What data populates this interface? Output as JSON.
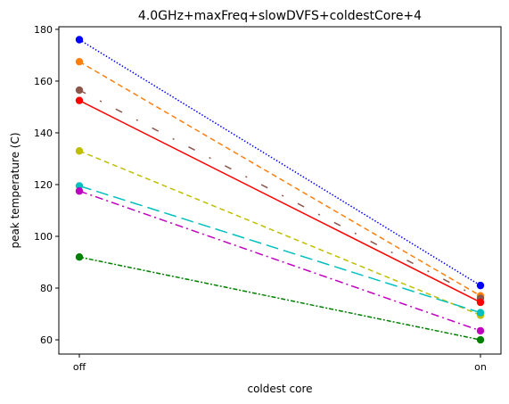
{
  "chart_data": {
    "type": "line",
    "title": "4.0GHz+maxFreq+slowDVFS+coldestCore+4",
    "xlabel": "coldest core",
    "ylabel": "peak temperature (C)",
    "categories": [
      "off",
      "on"
    ],
    "ylim": [
      54.5,
      181
    ],
    "yticks": [
      60,
      80,
      100,
      120,
      140,
      160,
      180
    ],
    "grid": false,
    "series": [
      {
        "values": [
          176,
          81
        ],
        "color": "#0000ff",
        "dash": "dotted"
      },
      {
        "values": [
          167.5,
          77
        ],
        "color": "#ff7f0e",
        "dash": "dashed"
      },
      {
        "values": [
          156.5,
          76
        ],
        "color": "#8c564b",
        "dash": "sparse-dashdot"
      },
      {
        "values": [
          152.5,
          74.5
        ],
        "color": "#ff0000",
        "dash": "solid"
      },
      {
        "values": [
          133,
          69.5
        ],
        "color": "#bfbf00",
        "dash": "dashed"
      },
      {
        "values": [
          119.5,
          70.5
        ],
        "color": "#00bfbf",
        "dash": "long-dashed"
      },
      {
        "values": [
          117.5,
          63.5
        ],
        "color": "#bf00bf",
        "dash": "dashdot"
      },
      {
        "values": [
          92,
          60
        ],
        "color": "#008000",
        "dash": "densely-dashdot"
      }
    ]
  }
}
